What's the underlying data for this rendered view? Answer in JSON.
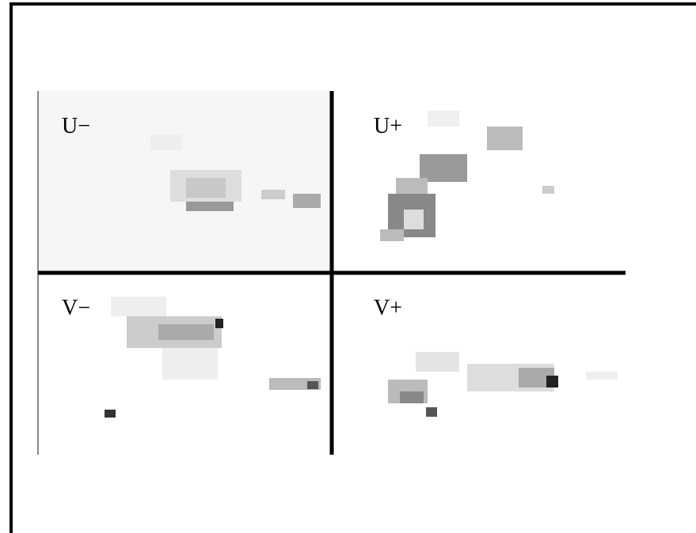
{
  "panels": [
    {
      "label": "U−"
    },
    {
      "label": "U+"
    },
    {
      "label": "V−"
    },
    {
      "label": "V+"
    }
  ]
}
